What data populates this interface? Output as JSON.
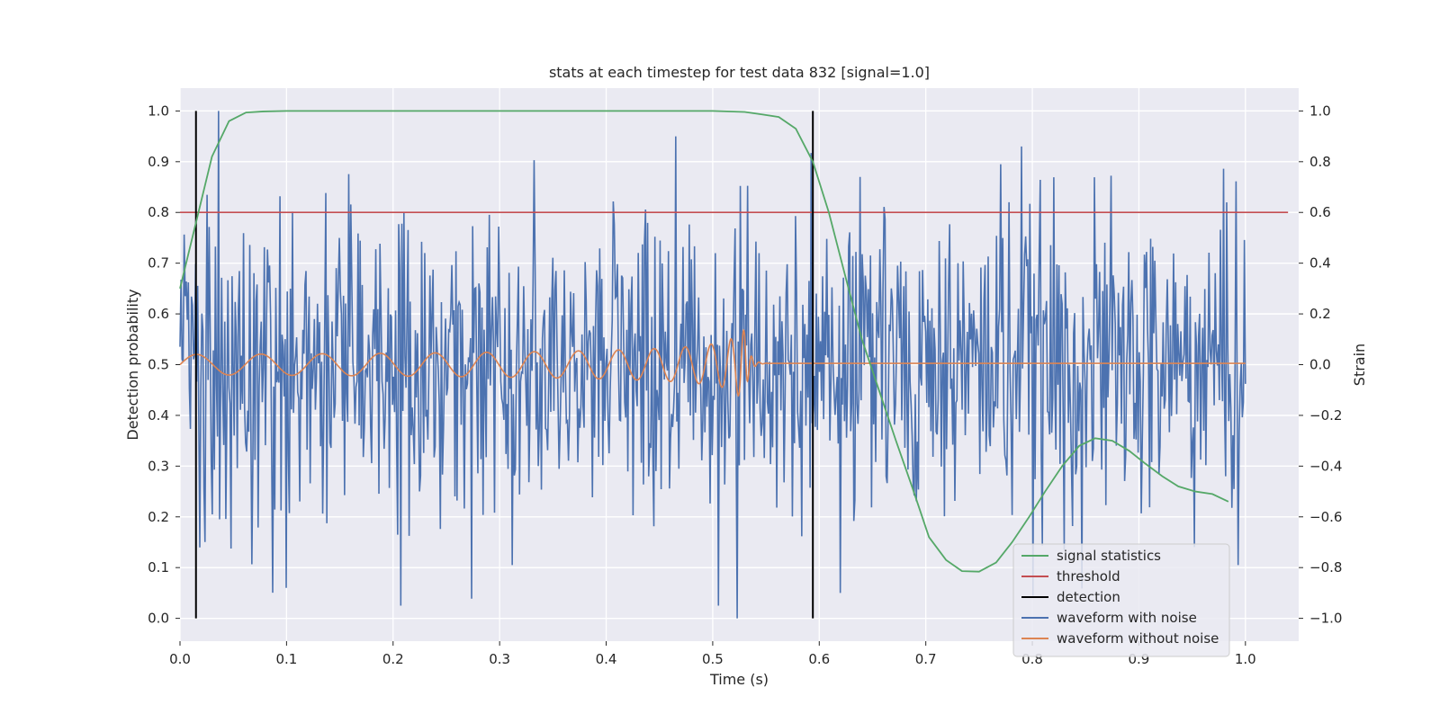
{
  "chart_data": {
    "type": "line",
    "title": "stats at each timestep for test data 832 [signal=1.0]",
    "xlabel": "Time (s)",
    "ylabel_left": "Detection probability",
    "ylabel_right": "Strain",
    "xlim": [
      0.0,
      1.05
    ],
    "ylim_left": [
      -0.045,
      1.045
    ],
    "ylim_right": [
      -1.09,
      1.09
    ],
    "x_ticks": [
      "0.0",
      "0.1",
      "0.2",
      "0.3",
      "0.4",
      "0.5",
      "0.6",
      "0.7",
      "0.8",
      "0.9",
      "1.0"
    ],
    "y_ticks_left": [
      "0.0",
      "0.1",
      "0.2",
      "0.3",
      "0.4",
      "0.5",
      "0.6",
      "0.7",
      "0.8",
      "0.9",
      "1.0"
    ],
    "y_ticks_right": [
      "−1.0",
      "−0.8",
      "−0.6",
      "−0.4",
      "−0.2",
      "0.0",
      "0.2",
      "0.4",
      "0.6",
      "0.8",
      "1.0"
    ],
    "grid": true,
    "legend_position": "lower-right",
    "legend": [
      {
        "name": "signal statistics",
        "color": "#55a868"
      },
      {
        "name": "threshold",
        "color": "#c44e52"
      },
      {
        "name": "detection",
        "color": "#000000"
      },
      {
        "name": "waveform with noise",
        "color": "#4c72b0"
      },
      {
        "name": "waveform without noise",
        "color": "#dd8452"
      }
    ],
    "signal_statistics": {
      "axis": "left",
      "x": [
        0.0,
        0.015,
        0.03,
        0.046,
        0.062,
        0.078,
        0.1,
        0.2,
        0.3,
        0.4,
        0.5,
        0.53,
        0.547,
        0.562,
        0.578,
        0.594,
        0.609,
        0.625,
        0.64,
        0.656,
        0.672,
        0.687,
        0.703,
        0.719,
        0.734,
        0.75,
        0.766,
        0.781,
        0.797,
        0.812,
        0.828,
        0.844,
        0.859,
        0.875,
        0.891,
        0.906,
        0.922,
        0.937,
        0.953,
        0.969,
        0.984
      ],
      "y": [
        0.65,
        0.78,
        0.91,
        0.98,
        0.997,
        0.999,
        1.0,
        1.0,
        1.0,
        1.0,
        1.0,
        0.998,
        0.993,
        0.988,
        0.965,
        0.9,
        0.8,
        0.67,
        0.55,
        0.45,
        0.35,
        0.26,
        0.16,
        0.115,
        0.093,
        0.092,
        0.11,
        0.15,
        0.2,
        0.25,
        0.3,
        0.34,
        0.355,
        0.35,
        0.33,
        0.305,
        0.28,
        0.26,
        0.25,
        0.245,
        0.23
      ]
    },
    "threshold": {
      "axis": "left",
      "y": 0.8,
      "x_range": [
        0.0,
        1.04
      ]
    },
    "detections": {
      "axis": "left",
      "x": [
        0.015,
        0.594
      ],
      "y_range": [
        0.0,
        1.0
      ]
    },
    "waveform_with_noise": {
      "axis": "right",
      "x_range": [
        0.0,
        1.0
      ],
      "points": 1024,
      "spread": 0.3,
      "extremes": [
        {
          "x": 0.036,
          "y": 1.0
        },
        {
          "x": 0.1,
          "y": -0.88
        },
        {
          "x": 0.312,
          "y": -0.79
        },
        {
          "x": 0.465,
          "y": 0.9
        },
        {
          "x": 0.523,
          "y": -1.0
        },
        {
          "x": 0.62,
          "y": -0.9
        },
        {
          "x": 0.77,
          "y": 0.79
        },
        {
          "x": 0.79,
          "y": 0.86
        },
        {
          "x": 0.83,
          "y": -0.73
        },
        {
          "x": 0.982,
          "y": 0.64
        },
        {
          "x": 0.993,
          "y": -0.79
        }
      ]
    },
    "waveform_without_noise": {
      "axis": "right",
      "x_range": [
        0.0,
        1.0
      ],
      "merger_time": 0.53,
      "tail_value": 0.005,
      "amplitude_start": 0.04,
      "amplitude_peak": 0.14,
      "cycles_start": 16,
      "peak_cycles": 140
    }
  }
}
